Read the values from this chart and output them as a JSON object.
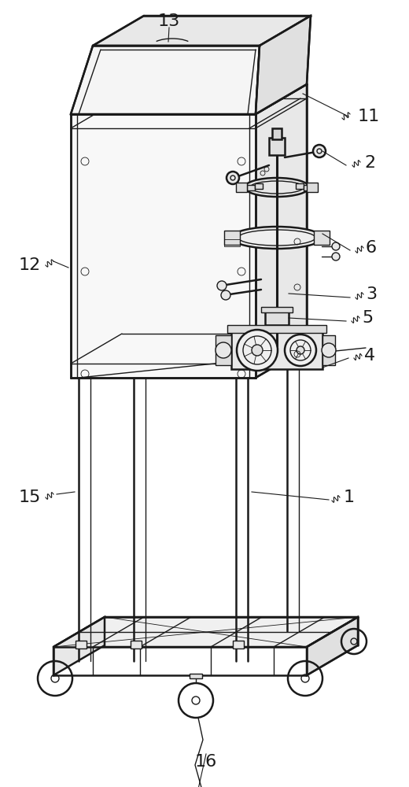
{
  "background_color": "#ffffff",
  "line_color": "#1a1a1a",
  "label_color": "#1a1a1a",
  "figsize": [
    5.2,
    10.0
  ],
  "dpi": 100
}
